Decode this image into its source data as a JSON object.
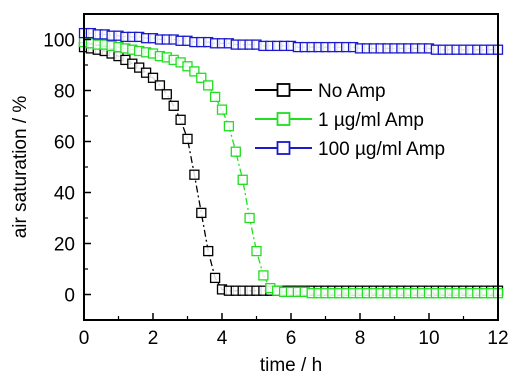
{
  "chart_data": {
    "type": "scatter",
    "title": "",
    "xlabel": "time / h",
    "ylabel": "air saturation / %",
    "xlim": [
      0,
      12
    ],
    "ylim": [
      -10,
      110
    ],
    "xticks": [
      "0",
      "2",
      "4",
      "6",
      "8",
      "10",
      "12"
    ],
    "yticks": [
      "0",
      "20",
      "40",
      "60",
      "80",
      "100"
    ],
    "grid": false,
    "legend_position": "center-right",
    "marker": "open-square",
    "line_style": "dash-dot",
    "series": [
      {
        "name": "No Amp",
        "color": "#000000",
        "x": [
          0.0,
          0.2,
          0.4,
          0.6,
          0.8,
          1.0,
          1.2,
          1.4,
          1.6,
          1.8,
          2.0,
          2.2,
          2.4,
          2.6,
          2.8,
          3.0,
          3.2,
          3.4,
          3.6,
          3.8,
          4.0,
          4.2,
          4.4,
          4.6,
          4.8,
          5.0,
          5.2,
          5.4,
          5.6,
          5.8,
          6.0,
          6.2,
          6.4,
          6.6,
          6.8,
          7.0,
          7.2,
          7.4,
          7.6,
          7.8,
          8.0,
          8.2,
          8.4,
          8.6,
          8.8,
          9.0,
          9.2,
          9.4,
          9.6,
          9.8,
          10.0,
          10.2,
          10.4,
          10.6,
          10.8,
          11.0,
          11.2,
          11.4,
          11.6,
          11.8,
          12.0
        ],
        "y": [
          97,
          96.5,
          96,
          95.5,
          94.5,
          93.5,
          92,
          90.5,
          89,
          87,
          85,
          82,
          78.5,
          74,
          68.5,
          61,
          47,
          32,
          17,
          6.5,
          2,
          1.5,
          1.5,
          1.5,
          1.5,
          1.5,
          1.5,
          1.5,
          1.5,
          1.5,
          1.5,
          1.5,
          1.5,
          1.5,
          1.5,
          1.5,
          1.5,
          1.5,
          1.5,
          1.5,
          1.5,
          1.5,
          1.5,
          1.5,
          1.5,
          1.5,
          1.5,
          1.5,
          1.5,
          1.5,
          1.5,
          1.5,
          1.5,
          1.5,
          1.5,
          1.5,
          1.5,
          1.5,
          1.5,
          1.5,
          1.5
        ]
      },
      {
        "name": "1 µg/ml Amp",
        "color": "#22dd22",
        "x": [
          0.0,
          0.2,
          0.4,
          0.6,
          0.8,
          1.0,
          1.2,
          1.4,
          1.6,
          1.8,
          2.0,
          2.2,
          2.4,
          2.6,
          2.8,
          3.0,
          3.2,
          3.4,
          3.6,
          3.8,
          4.0,
          4.2,
          4.4,
          4.6,
          4.8,
          5.0,
          5.2,
          5.4,
          5.6,
          5.8,
          6.0,
          6.2,
          6.4,
          6.6,
          6.8,
          7.0,
          7.2,
          7.4,
          7.6,
          7.8,
          8.0,
          8.2,
          8.4,
          8.6,
          8.8,
          9.0,
          9.2,
          9.4,
          9.6,
          9.8,
          10.0,
          10.2,
          10.4,
          10.6,
          10.8,
          11.0,
          11.2,
          11.4,
          11.6,
          11.8,
          12.0
        ],
        "y": [
          99,
          98.5,
          98,
          98,
          97.5,
          97,
          96.5,
          96,
          95.5,
          95,
          94.5,
          93.5,
          93,
          92,
          91,
          89.5,
          87.5,
          85,
          82,
          77.5,
          72.5,
          66,
          56,
          45,
          30,
          17,
          7.5,
          2.5,
          1.5,
          1,
          1,
          1,
          1,
          0.5,
          0.5,
          0.5,
          0.5,
          0.5,
          0.5,
          0.5,
          0.5,
          0.5,
          0.5,
          0.5,
          0.5,
          0.5,
          0.5,
          0.5,
          0.5,
          0.5,
          0.5,
          0.5,
          0.5,
          0.5,
          0.5,
          0.5,
          0.5,
          0.5,
          0.5,
          0.5,
          0.5
        ]
      },
      {
        "name": "100 µg/ml Amp",
        "color": "#1a1acc",
        "x": [
          0.0,
          0.2,
          0.4,
          0.6,
          0.8,
          1.0,
          1.2,
          1.4,
          1.6,
          1.8,
          2.0,
          2.2,
          2.4,
          2.6,
          2.8,
          3.0,
          3.2,
          3.4,
          3.6,
          3.8,
          4.0,
          4.2,
          4.4,
          4.6,
          4.8,
          5.0,
          5.2,
          5.4,
          5.6,
          5.8,
          6.0,
          6.2,
          6.4,
          6.6,
          6.8,
          7.0,
          7.2,
          7.4,
          7.6,
          7.8,
          8.0,
          8.2,
          8.4,
          8.6,
          8.8,
          9.0,
          9.2,
          9.4,
          9.6,
          9.8,
          10.0,
          10.2,
          10.4,
          10.6,
          10.8,
          11.0,
          11.2,
          11.4,
          11.6,
          11.8,
          12.0
        ],
        "y": [
          102.5,
          102.5,
          102,
          102,
          101.5,
          101.5,
          101,
          101,
          101,
          100.5,
          100.5,
          100,
          100,
          100,
          99.5,
          99.5,
          99,
          99,
          99,
          98.5,
          98.5,
          98.5,
          98,
          98,
          98,
          98,
          97.5,
          97.5,
          97.5,
          97.5,
          97.5,
          97,
          97,
          97,
          97,
          97,
          97,
          97,
          97,
          97,
          96.5,
          96.5,
          96.5,
          96.5,
          96.5,
          96.5,
          96.5,
          96.5,
          96.5,
          96.5,
          96.5,
          96,
          96,
          96,
          96,
          96,
          96,
          96,
          96,
          96,
          96
        ]
      }
    ]
  }
}
